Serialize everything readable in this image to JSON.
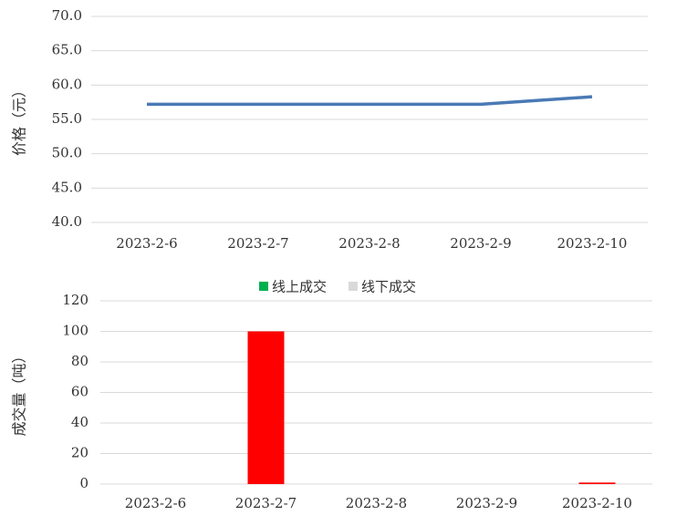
{
  "chart_data": [
    {
      "type": "line",
      "y_label": "价格（元）",
      "categories": [
        "2023-2-6",
        "2023-2-7",
        "2023-2-8",
        "2023-2-9",
        "2023-2-10"
      ],
      "series": [
        {
          "color": "#4a7ab5",
          "values": [
            57.2,
            57.2,
            57.2,
            57.2,
            58.3
          ]
        }
      ],
      "ylim": [
        40,
        70
      ],
      "yticks": [
        {
          "value": 40,
          "label": "40.0"
        },
        {
          "value": 45,
          "label": "45.0"
        },
        {
          "value": 50,
          "label": "50.0"
        },
        {
          "value": 55,
          "label": "55.0"
        },
        {
          "value": 60,
          "label": "60.0"
        },
        {
          "value": 65,
          "label": "65.0"
        },
        {
          "value": 70,
          "label": "70.0"
        }
      ],
      "grid": true
    },
    {
      "type": "bar",
      "y_label": "成交量（吨）",
      "categories": [
        "2023-2-6",
        "2023-2-7",
        "2023-2-8",
        "2023-2-9",
        "2023-2-10"
      ],
      "series": [
        {
          "name": "线上成交",
          "legend_color": "#00b050",
          "color": "#00b050",
          "values": [
            0,
            0,
            0,
            0,
            0
          ]
        },
        {
          "name": "线下成交",
          "legend_color": "#d9d9d9",
          "color": "#ff0000",
          "values": [
            0,
            100,
            0,
            0,
            1
          ]
        }
      ],
      "ylim": [
        0,
        120
      ],
      "yticks": [
        0,
        20,
        40,
        60,
        80,
        100,
        120
      ],
      "grid": true
    }
  ]
}
